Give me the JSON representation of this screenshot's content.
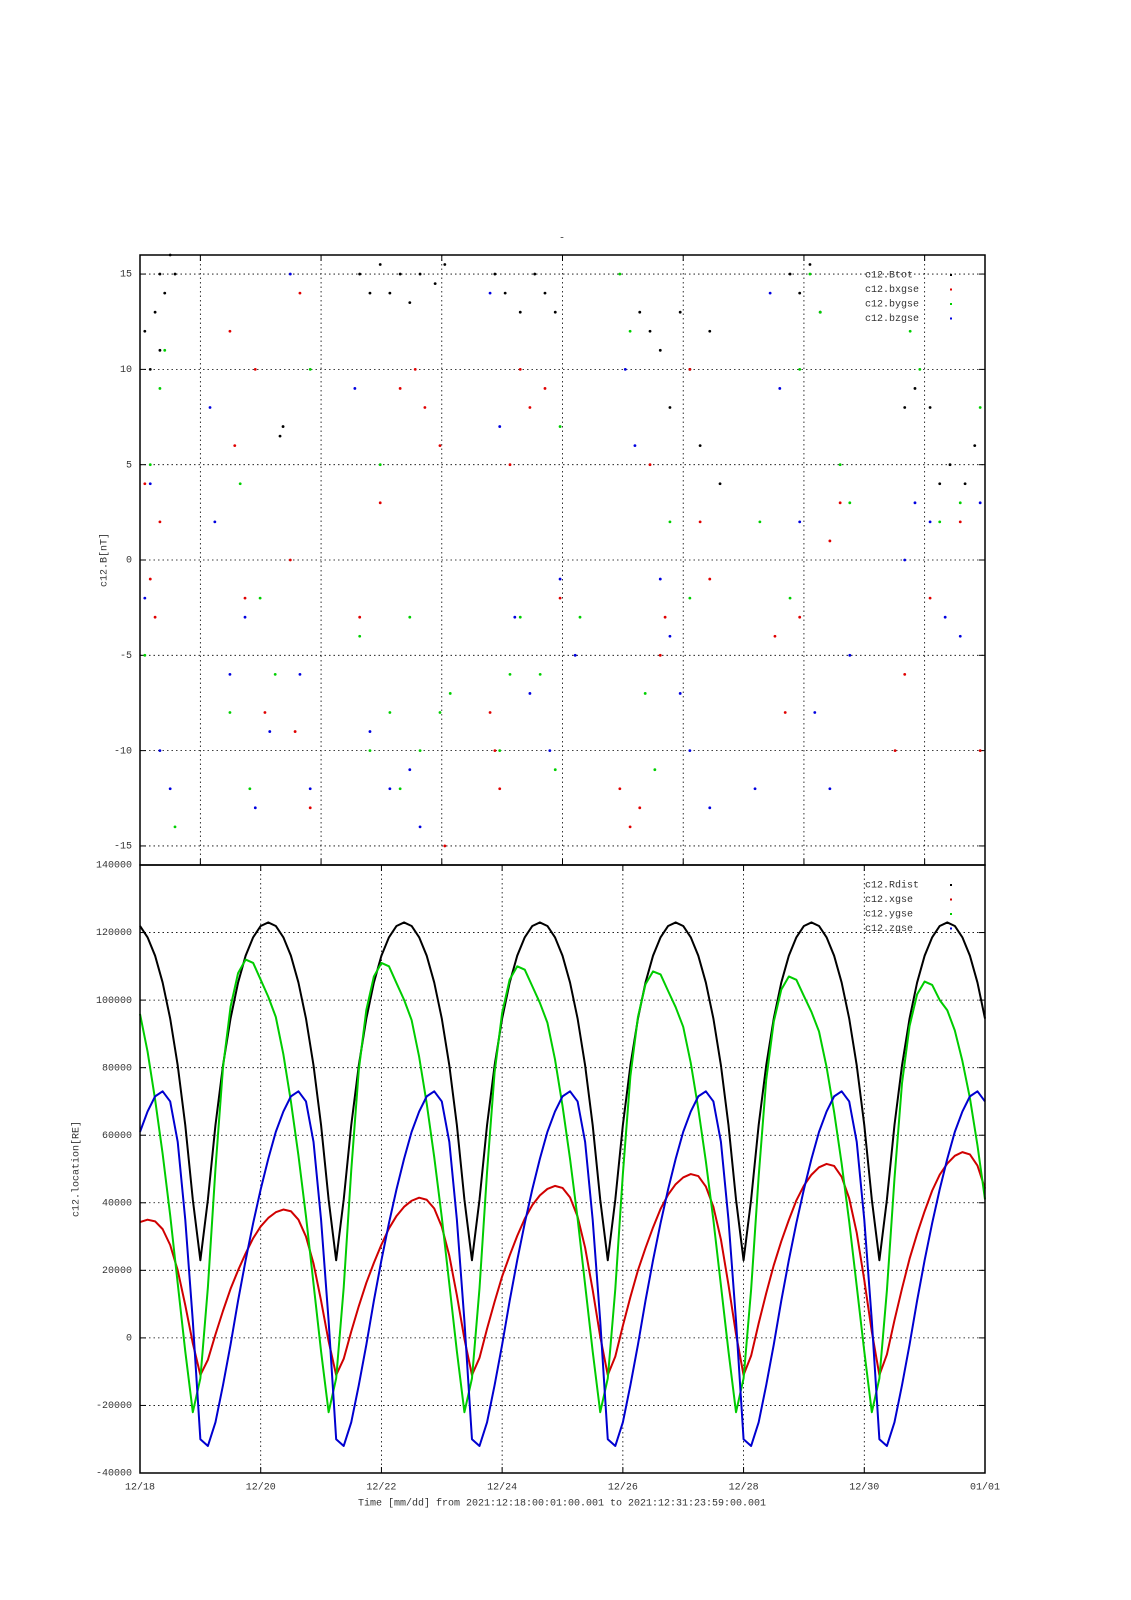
{
  "chart_data": [
    {
      "type": "scatter",
      "title": "-",
      "ylabel": "c12.B[nT]",
      "grid": true,
      "legend": "upper right",
      "xlim": [
        0,
        14
      ],
      "xticks": [
        1,
        3,
        5,
        7,
        9,
        11,
        13
      ],
      "ylim": [
        -16,
        16
      ],
      "yticks": [
        -15,
        -10,
        -5,
        0,
        5,
        10,
        15
      ],
      "series": [
        {
          "name": "c12.Btot",
          "color": "#000000",
          "x": [
            0.08,
            0.17,
            0.25,
            0.33,
            0.41,
            0.5,
            0.58,
            0.33,
            2.32,
            2.37,
            3.64,
            3.81,
            3.98,
            4.14,
            4.31,
            4.47,
            4.64,
            4.89,
            5.05,
            5.88,
            6.05,
            6.3,
            6.54,
            6.71,
            6.88,
            8.28,
            8.45,
            8.62,
            8.78,
            8.95,
            9.11,
            9.28,
            9.44,
            9.61,
            10.77,
            10.93,
            11.1,
            11.27,
            12.67,
            12.84,
            13.09,
            13.25,
            13.42,
            13.67,
            13.83
          ],
          "values": [
            12,
            10,
            13,
            15,
            14,
            16,
            15,
            11,
            6.5,
            7,
            15,
            14,
            15.5,
            14,
            15,
            13.5,
            15,
            14.5,
            15.5,
            15,
            14,
            13,
            15,
            14,
            13,
            13,
            12,
            11,
            8,
            13,
            10,
            6,
            12,
            4,
            15,
            14,
            15.5,
            13,
            8,
            9,
            8,
            4,
            5,
            4,
            6
          ]
        },
        {
          "name": "c12.bxgse",
          "color": "#e00000",
          "x": [
            0.08,
            0.17,
            0.25,
            0.33,
            1.49,
            1.57,
            1.74,
            1.91,
            2.07,
            2.49,
            2.57,
            2.65,
            2.82,
            3.64,
            3.98,
            4.31,
            4.56,
            4.72,
            4.97,
            5.05,
            5.8,
            5.88,
            5.96,
            6.13,
            6.3,
            6.46,
            6.71,
            6.96,
            7.95,
            8.12,
            8.28,
            8.45,
            8.62,
            8.7,
            9.11,
            9.28,
            9.44,
            10.52,
            10.69,
            10.93,
            11.43,
            11.6,
            12.51,
            12.67,
            13.09,
            13.59,
            13.92
          ],
          "values": [
            4,
            -1,
            -3,
            2,
            12,
            6,
            -2,
            10,
            -8,
            0,
            -9,
            14,
            -13,
            -3,
            3,
            9,
            10,
            8,
            6,
            -15,
            -8,
            -10,
            -12,
            5,
            10,
            8,
            9,
            -2,
            -12,
            -14,
            -13,
            5,
            -5,
            -3,
            10,
            2,
            -1,
            -4,
            -8,
            -3,
            1,
            3,
            -10,
            -6,
            -2,
            2,
            -10
          ]
        },
        {
          "name": "c12.bygse",
          "color": "#00d000",
          "x": [
            0.08,
            0.17,
            0.33,
            0.41,
            0.58,
            1.49,
            1.66,
            1.82,
            1.99,
            2.24,
            2.82,
            3.64,
            3.81,
            3.98,
            4.14,
            4.31,
            4.47,
            4.64,
            4.97,
            5.14,
            5.96,
            6.13,
            6.3,
            6.63,
            6.88,
            6.96,
            7.29,
            7.95,
            8.12,
            8.37,
            8.53,
            8.78,
            9.11,
            10.27,
            10.77,
            10.93,
            11.1,
            11.27,
            11.6,
            11.76,
            12.76,
            12.92,
            13.25,
            13.59,
            13.92
          ],
          "values": [
            -5,
            5,
            9,
            11,
            -14,
            -8,
            4,
            -12,
            -2,
            -6,
            10,
            -4,
            -10,
            5,
            -8,
            -12,
            -3,
            -10,
            -8,
            -7,
            -10,
            -6,
            -3,
            -6,
            -11,
            7,
            -3,
            15,
            12,
            -7,
            -11,
            2,
            -2,
            2,
            -2,
            10,
            15,
            13,
            5,
            3,
            12,
            10,
            2,
            3,
            8
          ]
        },
        {
          "name": "c12.bzgse",
          "color": "#0000e0",
          "x": [
            0.08,
            0.17,
            0.33,
            0.5,
            1.16,
            1.24,
            1.49,
            1.74,
            1.91,
            2.15,
            2.49,
            2.65,
            2.82,
            3.56,
            3.81,
            4.14,
            4.47,
            4.64,
            5.8,
            5.96,
            6.21,
            6.46,
            6.79,
            6.96,
            7.21,
            8.04,
            8.2,
            8.62,
            8.78,
            8.95,
            9.11,
            9.44,
            10.19,
            10.44,
            10.6,
            10.93,
            11.18,
            11.43,
            11.76,
            12.67,
            12.84,
            13.09,
            13.34,
            13.59,
            13.92
          ],
          "values": [
            -2,
            4,
            -10,
            -12,
            8,
            2,
            -6,
            -3,
            -13,
            -9,
            15,
            -6,
            -12,
            9,
            -9,
            -12,
            -11,
            -14,
            14,
            7,
            -3,
            -7,
            -10,
            -1,
            -5,
            10,
            6,
            -1,
            -4,
            -7,
            -10,
            -13,
            -12,
            14,
            9,
            2,
            -8,
            -12,
            -5,
            0,
            3,
            2,
            -3,
            -4,
            3
          ]
        }
      ]
    },
    {
      "type": "line",
      "ylabel": "c12.location[RE]",
      "xlabel": "Time [mm/dd]  from 2021:12:18:00:01:00.001  to  2021:12:31:23:59:00.001",
      "grid": true,
      "legend": "upper right",
      "xlim": [
        0,
        14
      ],
      "xticks": [
        {
          "value": 0,
          "label": "12/18"
        },
        {
          "value": 2,
          "label": "12/20"
        },
        {
          "value": 4,
          "label": "12/22"
        },
        {
          "value": 6,
          "label": "12/24"
        },
        {
          "value": 8,
          "label": "12/26"
        },
        {
          "value": 10,
          "label": "12/28"
        },
        {
          "value": 12,
          "label": "12/30"
        },
        {
          "value": 14,
          "label": "01/01"
        }
      ],
      "ylim": [
        -40000,
        140000
      ],
      "yticks": [
        -40000,
        -20000,
        0,
        20000,
        40000,
        60000,
        80000,
        100000,
        120000,
        140000
      ],
      "x": [
        0,
        0.125,
        0.25,
        0.375,
        0.5,
        0.625,
        0.75,
        0.875,
        1,
        1.125,
        1.25,
        1.375,
        1.5,
        1.625,
        1.75,
        1.875,
        2,
        2.125,
        2.25,
        2.375,
        2.5,
        2.625,
        2.75,
        2.875,
        3,
        3.125,
        3.25,
        3.375,
        3.5,
        3.625,
        3.75,
        3.875,
        4,
        4.125,
        4.25,
        4.375,
        4.5,
        4.625,
        4.75,
        4.875,
        5,
        5.125,
        5.25,
        5.375,
        5.5,
        5.625,
        5.75,
        5.875,
        6,
        6.125,
        6.25,
        6.375,
        6.5,
        6.625,
        6.75,
        6.875,
        7,
        7.125,
        7.25,
        7.375,
        7.5,
        7.625,
        7.75,
        7.875,
        8,
        8.125,
        8.25,
        8.375,
        8.5,
        8.625,
        8.75,
        8.875,
        9,
        9.125,
        9.25,
        9.375,
        9.5,
        9.625,
        9.75,
        9.875,
        10,
        10.125,
        10.25,
        10.375,
        10.5,
        10.625,
        10.75,
        10.875,
        11,
        11.125,
        11.25,
        11.375,
        11.5,
        11.625,
        11.75,
        11.875,
        12,
        12.125,
        12.25,
        12.375,
        12.5,
        12.625,
        12.75,
        12.875,
        13,
        13.125,
        13.25,
        13.375,
        13.5,
        13.625,
        13.75,
        13.875,
        14
      ],
      "series": [
        {
          "name": "c12.Rdist",
          "color": "#000000",
          "values": [
            121950,
            118600,
            113150,
            105200,
            94550,
            80650,
            63000,
            40950,
            23000,
            40950,
            63000,
            80650,
            94550,
            105200,
            113150,
            118600,
            121950,
            123000,
            121950,
            118600,
            113150,
            105200,
            94550,
            80650,
            63000,
            40950,
            23000,
            40950,
            63000,
            80650,
            94550,
            105200,
            113150,
            118600,
            121950,
            123000,
            121950,
            118600,
            113150,
            105200,
            94550,
            80650,
            63000,
            40950,
            23000,
            40950,
            63000,
            80650,
            94550,
            105200,
            113150,
            118600,
            121950,
            123000,
            121950,
            118600,
            113150,
            105200,
            94550,
            80650,
            63000,
            40950,
            23000,
            40950,
            63000,
            80650,
            94550,
            105200,
            113150,
            118600,
            121950,
            123000,
            121950,
            118600,
            113150,
            105200,
            94550,
            80650,
            63000,
            40950,
            23000,
            40950,
            63000,
            80650,
            94550,
            105200,
            113150,
            118600,
            121950,
            123000,
            121950,
            118600,
            113150,
            105200,
            94550,
            80650,
            63000,
            40950,
            23000,
            40950,
            63000,
            80650,
            94550,
            105200,
            113150,
            118600,
            121950,
            123000,
            121950,
            118600,
            113150,
            105200,
            94550
          ]
        },
        {
          "name": "c12.xgse",
          "color": "#d00000",
          "values": [
            34300,
            35000,
            34500,
            32200,
            27500,
            20000,
            9700,
            -1600,
            -11000,
            -6500,
            1000,
            8000,
            14500,
            20000,
            25000,
            29500,
            33000,
            35500,
            37200,
            38000,
            37500,
            35000,
            30000,
            22000,
            11000,
            -1000,
            -11000,
            -6200,
            1900,
            9400,
            16300,
            22200,
            27600,
            32400,
            36100,
            38800,
            40600,
            41500,
            40900,
            38300,
            32900,
            24300,
            12600,
            -300,
            -11000,
            -5900,
            2700,
            10700,
            18200,
            24400,
            30200,
            35300,
            39300,
            42200,
            44100,
            45000,
            44400,
            41600,
            35900,
            26700,
            14200,
            400,
            -11000,
            -5500,
            3600,
            12100,
            20000,
            26600,
            32700,
            38200,
            42400,
            45500,
            47500,
            48500,
            47900,
            44800,
            38800,
            29100,
            15700,
            1100,
            -11000,
            -5300,
            4300,
            13200,
            21500,
            28600,
            34900,
            40700,
            45100,
            48300,
            50500,
            51500,
            50900,
            47700,
            41300,
            31100,
            17100,
            1800,
            -11000,
            -4900,
            5200,
            14600,
            23400,
            30800,
            37500,
            43600,
            48300,
            51600,
            53900,
            55000,
            54300,
            51000,
            44200
          ]
        },
        {
          "name": "c12.ygse",
          "color": "#00cc00",
          "values": [
            95900,
            84800,
            70600,
            54500,
            36300,
            16100,
            -4000,
            -22000,
            -12000,
            15000,
            50000,
            80000,
            98000,
            108000,
            112000,
            111000,
            106000,
            101000,
            95000,
            84000,
            70000,
            54000,
            36000,
            16000,
            -4000,
            -22000,
            -12000,
            14900,
            49600,
            79300,
            97100,
            107000,
            111000,
            110000,
            105000,
            100100,
            94100,
            83200,
            69400,
            53500,
            35700,
            15900,
            -4000,
            -22000,
            -12000,
            14700,
            49100,
            78600,
            96200,
            106100,
            110000,
            109000,
            104100,
            99200,
            93300,
            82500,
            68700,
            53000,
            35400,
            15700,
            -4000,
            -22000,
            -12000,
            14500,
            48500,
            77500,
            95000,
            104700,
            108500,
            107600,
            102700,
            97900,
            92100,
            81400,
            67800,
            52300,
            34900,
            15500,
            -4000,
            -22000,
            -12000,
            14300,
            47800,
            76400,
            93600,
            103100,
            107000,
            106000,
            101200,
            96500,
            90700,
            80200,
            66900,
            51600,
            34400,
            15300,
            -4000,
            -22000,
            -12000,
            14100,
            47100,
            75400,
            92300,
            101700,
            105500,
            104500,
            100000,
            97000,
            91000,
            82000,
            71000,
            57000,
            41000
          ]
        },
        {
          "name": "c12.zgse",
          "color": "#0000d0",
          "values": [
            61000,
            67000,
            71500,
            73000,
            70000,
            58000,
            35000,
            5000,
            -30000,
            -32000,
            -25000,
            -14000,
            -2000,
            11000,
            23000,
            34000,
            44000,
            53000,
            61000,
            67000,
            71500,
            73000,
            70000,
            58000,
            35000,
            5000,
            -30000,
            -32000,
            -25000,
            -14000,
            -2000,
            11000,
            23000,
            34000,
            44000,
            53000,
            61000,
            67000,
            71500,
            73000,
            70000,
            58000,
            35000,
            5000,
            -30000,
            -32000,
            -25000,
            -14000,
            -2000,
            11000,
            23000,
            34000,
            44000,
            53000,
            61000,
            67000,
            71500,
            73000,
            70000,
            58000,
            35000,
            5000,
            -30000,
            -32000,
            -25000,
            -14000,
            -2000,
            11000,
            23000,
            34000,
            44000,
            53000,
            61000,
            67000,
            71500,
            73000,
            70000,
            58000,
            35000,
            5000,
            -30000,
            -32000,
            -25000,
            -14000,
            -2000,
            11000,
            23000,
            34000,
            44000,
            53000,
            61000,
            67000,
            71500,
            73000,
            70000,
            58000,
            35000,
            5000,
            -30000,
            -32000,
            -25000,
            -14000,
            -2000,
            11000,
            23000,
            34000,
            44000,
            53000,
            61000,
            67000,
            71500,
            73000,
            70000
          ]
        }
      ]
    }
  ]
}
